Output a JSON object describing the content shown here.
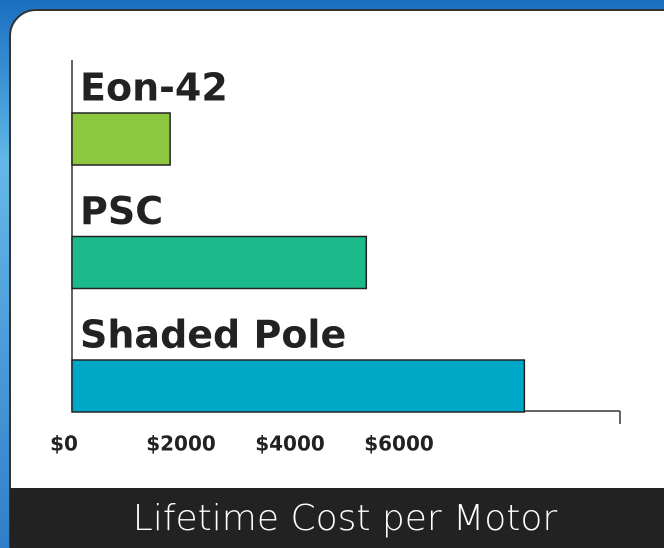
{
  "chart_data": {
    "type": "bar",
    "orientation": "horizontal",
    "title": "Lifetime Cost per Motor",
    "categories": [
      "Eon-42",
      "PSC",
      "Shaded Pole"
    ],
    "values": [
      1800,
      5400,
      8300
    ],
    "colors": [
      "#8dc63f",
      "#1cb98b",
      "#00a8c8"
    ],
    "xlim": [
      0,
      10000
    ],
    "xticks": [
      {
        "value": 0,
        "label": "$0"
      },
      {
        "value": 2000,
        "label": "$2000"
      },
      {
        "value": 4000,
        "label": "$4000"
      },
      {
        "value": 6000,
        "label": "$6000"
      }
    ]
  }
}
